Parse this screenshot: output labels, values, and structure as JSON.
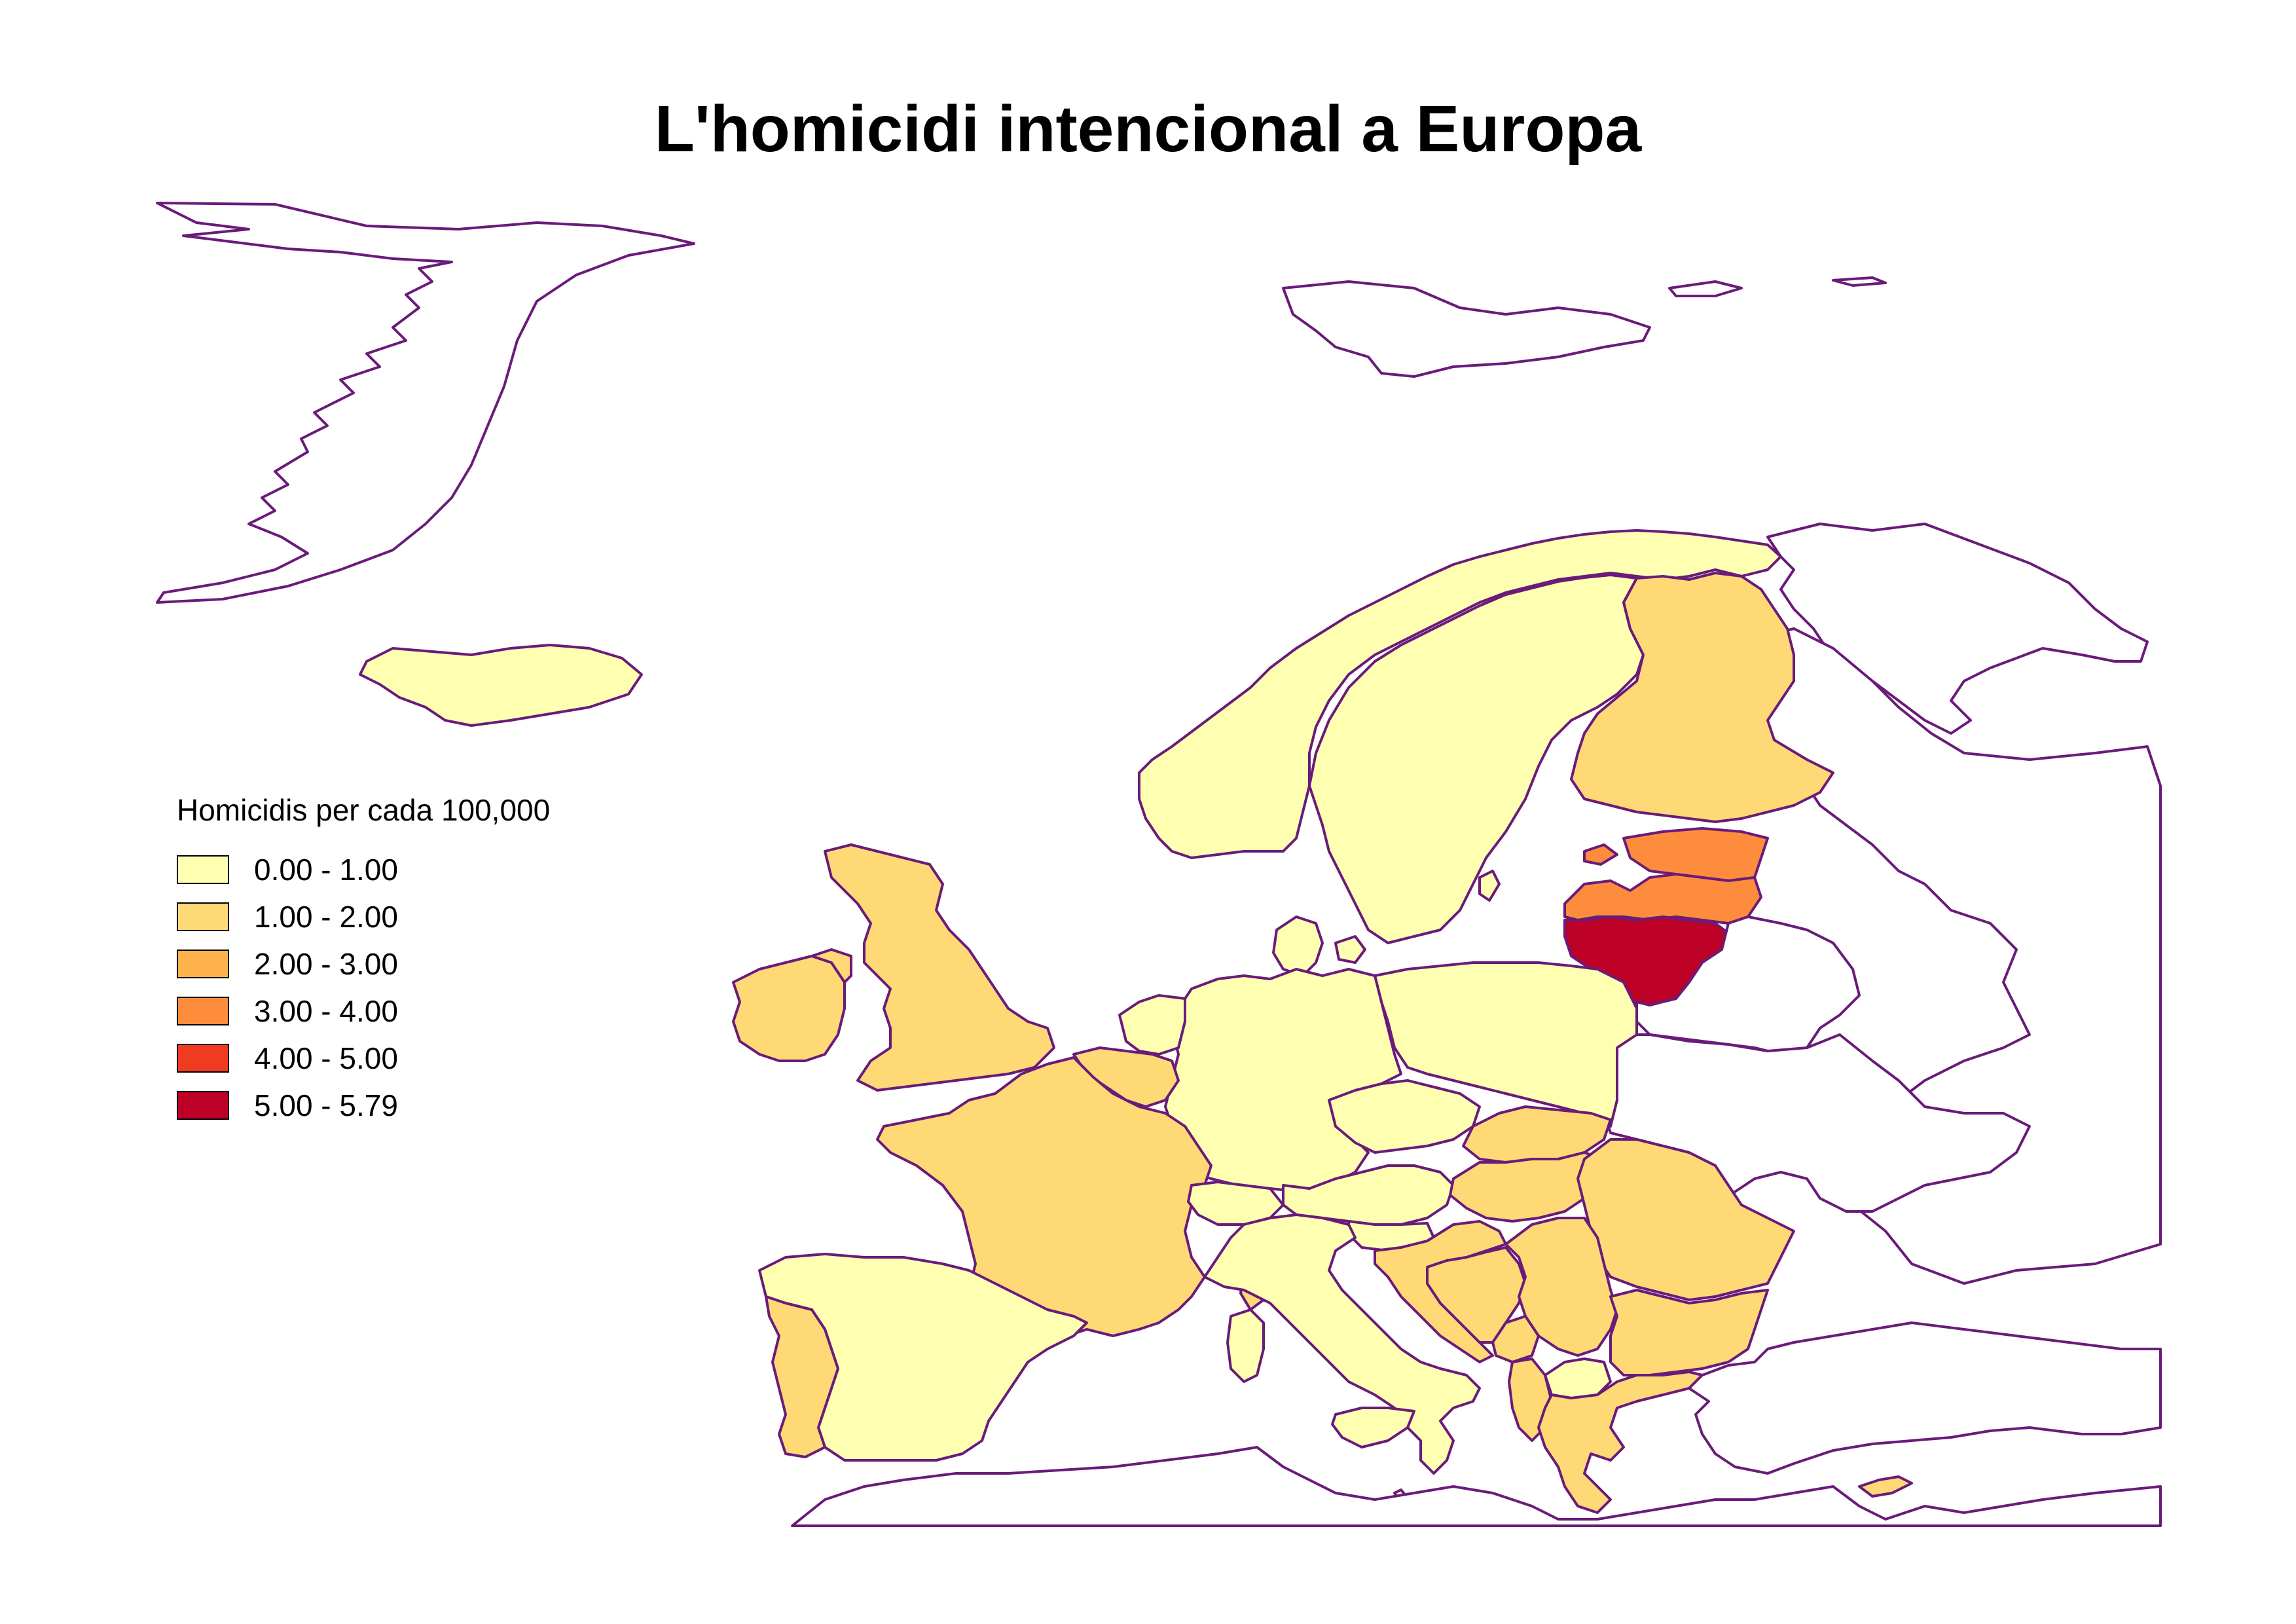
{
  "title": "L'homicidi intencional a Europa",
  "legend": {
    "title": "Homicidis per cada 100,000",
    "classes": [
      {
        "label": "0.00 - 1.00",
        "color": "#ffffb2"
      },
      {
        "label": "1.00 - 2.00",
        "color": "#fed976"
      },
      {
        "label": "2.00 - 3.00",
        "color": "#feb24c"
      },
      {
        "label": "3.00 - 4.00",
        "color": "#fd8d3c"
      },
      {
        "label": "4.00 - 5.00",
        "color": "#f03b20"
      },
      {
        "label": "5.00 - 5.79",
        "color": "#bd0026"
      }
    ]
  },
  "colors": {
    "border": "#6a1b7a",
    "no_data": "#ffffff"
  },
  "regions": [
    {
      "name": "Iceland",
      "class": 0
    },
    {
      "name": "Norway",
      "class": 0
    },
    {
      "name": "Sweden",
      "class": 0
    },
    {
      "name": "Finland",
      "class": 1
    },
    {
      "name": "Estonia",
      "class": 3
    },
    {
      "name": "Latvia",
      "class": 3
    },
    {
      "name": "Lithuania",
      "class": 5
    },
    {
      "name": "Denmark",
      "class": 0
    },
    {
      "name": "United Kingdom",
      "class": 1
    },
    {
      "name": "Ireland",
      "class": 1
    },
    {
      "name": "Netherlands",
      "class": 0
    },
    {
      "name": "Belgium",
      "class": 1
    },
    {
      "name": "France",
      "class": 1
    },
    {
      "name": "Spain",
      "class": 0
    },
    {
      "name": "Portugal",
      "class": 1
    },
    {
      "name": "Germany",
      "class": 0
    },
    {
      "name": "Poland",
      "class": 0
    },
    {
      "name": "Czechia",
      "class": 0
    },
    {
      "name": "Slovakia",
      "class": 1
    },
    {
      "name": "Austria",
      "class": 0
    },
    {
      "name": "Switzerland",
      "class": 0
    },
    {
      "name": "Italy",
      "class": 0
    },
    {
      "name": "Hungary",
      "class": 1
    },
    {
      "name": "Slovenia",
      "class": 0
    },
    {
      "name": "Croatia",
      "class": 1
    },
    {
      "name": "Bosnia and Herzegovina",
      "class": 1
    },
    {
      "name": "Serbia",
      "class": 1
    },
    {
      "name": "Montenegro",
      "class": 1
    },
    {
      "name": "North Macedonia",
      "class": 0
    },
    {
      "name": "Albania",
      "class": 1
    },
    {
      "name": "Greece",
      "class": 1
    },
    {
      "name": "Romania",
      "class": 1
    },
    {
      "name": "Bulgaria",
      "class": 1
    },
    {
      "name": "Cyprus",
      "class": 1
    },
    {
      "name": "Malta",
      "class": 0
    },
    {
      "name": "Sardinia",
      "class": 0
    },
    {
      "name": "Corsica",
      "class": 1
    },
    {
      "name": "Sicily",
      "class": 0
    },
    {
      "name": "Gotland",
      "class": 0
    },
    {
      "name": "Belarus",
      "class": -1
    },
    {
      "name": "Ukraine",
      "class": -1
    },
    {
      "name": "Russia",
      "class": -1
    },
    {
      "name": "Turkey",
      "class": -1
    },
    {
      "name": "Greenland",
      "class": -1
    },
    {
      "name": "Svalbard",
      "class": -1
    },
    {
      "name": "North Africa",
      "class": -1
    }
  ]
}
